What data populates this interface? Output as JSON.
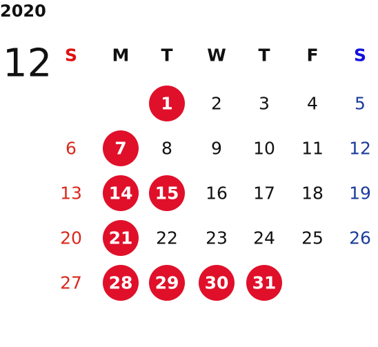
{
  "year": "2020",
  "month": "12",
  "weekdays": [
    "S",
    "M",
    "T",
    "W",
    "T",
    "F",
    "S"
  ],
  "weeks": [
    [
      null,
      null,
      {
        "label": "1",
        "marked": true
      },
      {
        "label": "2",
        "marked": false
      },
      {
        "label": "3",
        "marked": false
      },
      {
        "label": "4",
        "marked": false
      },
      {
        "label": "5",
        "marked": false
      }
    ],
    [
      {
        "label": "6",
        "marked": false
      },
      {
        "label": "7",
        "marked": true
      },
      {
        "label": "8",
        "marked": false
      },
      {
        "label": "9",
        "marked": false
      },
      {
        "label": "10",
        "marked": false
      },
      {
        "label": "11",
        "marked": false
      },
      {
        "label": "12",
        "marked": false
      }
    ],
    [
      {
        "label": "13",
        "marked": false
      },
      {
        "label": "14",
        "marked": true
      },
      {
        "label": "15",
        "marked": true
      },
      {
        "label": "16",
        "marked": false
      },
      {
        "label": "17",
        "marked": false
      },
      {
        "label": "18",
        "marked": false
      },
      {
        "label": "19",
        "marked": false
      }
    ],
    [
      {
        "label": "20",
        "marked": false
      },
      {
        "label": "21",
        "marked": true
      },
      {
        "label": "22",
        "marked": false
      },
      {
        "label": "23",
        "marked": false
      },
      {
        "label": "24",
        "marked": false
      },
      {
        "label": "25",
        "marked": false
      },
      {
        "label": "26",
        "marked": false
      }
    ],
    [
      {
        "label": "27",
        "marked": false
      },
      {
        "label": "28",
        "marked": true
      },
      {
        "label": "29",
        "marked": true
      },
      {
        "label": "30",
        "marked": true
      },
      {
        "label": "31",
        "marked": true
      },
      null,
      null
    ]
  ]
}
